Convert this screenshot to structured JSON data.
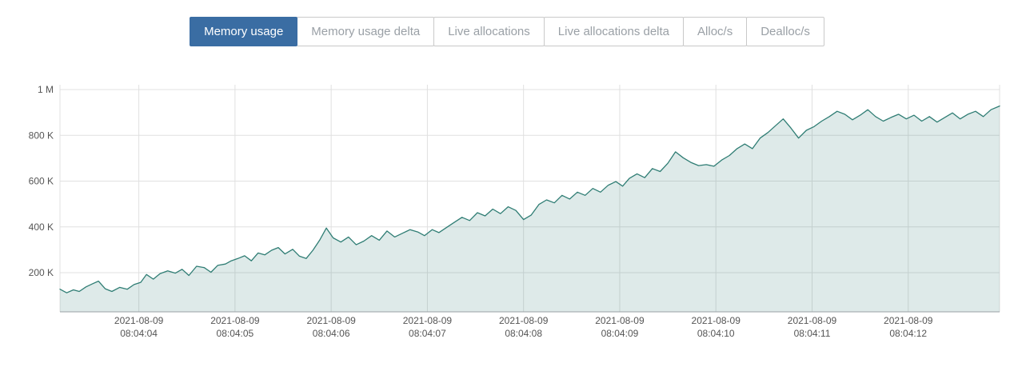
{
  "tabs": {
    "items": [
      {
        "label": "Memory usage",
        "active": true
      },
      {
        "label": "Memory usage delta",
        "active": false
      },
      {
        "label": "Live allocations",
        "active": false
      },
      {
        "label": "Live allocations delta",
        "active": false
      },
      {
        "label": "Alloc/s",
        "active": false
      },
      {
        "label": "Dealloc/s",
        "active": false
      }
    ],
    "active_color": "#3a6da3",
    "inactive_text_color": "#9aa0a6",
    "border_color": "#c9c9c9"
  },
  "chart_data": {
    "type": "area",
    "title": "Memory usage",
    "series_name": "Memory usage",
    "values_unit": "K",
    "x_domain": [
      3.18,
      12.95
    ],
    "y_domain": [
      29,
      1021
    ],
    "y_ticks": [
      {
        "label": "1 M",
        "value": 1000
      },
      {
        "label": "800 K",
        "value": 800
      },
      {
        "label": "600 K",
        "value": 600
      },
      {
        "label": "400 K",
        "value": 400
      },
      {
        "label": "200 K",
        "value": 200
      }
    ],
    "x_ticks": [
      {
        "date": "2021-08-09",
        "time": "08:04:04",
        "t": 4
      },
      {
        "date": "2021-08-09",
        "time": "08:04:05",
        "t": 5
      },
      {
        "date": "2021-08-09",
        "time": "08:04:06",
        "t": 6
      },
      {
        "date": "2021-08-09",
        "time": "08:04:07",
        "t": 7
      },
      {
        "date": "2021-08-09",
        "time": "08:04:08",
        "t": 8
      },
      {
        "date": "2021-08-09",
        "time": "08:04:09",
        "t": 9
      },
      {
        "date": "2021-08-09",
        "time": "08:04:10",
        "t": 10
      },
      {
        "date": "2021-08-09",
        "time": "08:04:11",
        "t": 11
      },
      {
        "date": "2021-08-09",
        "time": "08:04:12",
        "t": 12
      }
    ],
    "points": [
      [
        3.18,
        128
      ],
      [
        3.25,
        112
      ],
      [
        3.32,
        125
      ],
      [
        3.38,
        118
      ],
      [
        3.45,
        138
      ],
      [
        3.52,
        152
      ],
      [
        3.58,
        163
      ],
      [
        3.65,
        130
      ],
      [
        3.72,
        118
      ],
      [
        3.8,
        136
      ],
      [
        3.88,
        128
      ],
      [
        3.95,
        148
      ],
      [
        4.02,
        158
      ],
      [
        4.08,
        192
      ],
      [
        4.15,
        172
      ],
      [
        4.22,
        196
      ],
      [
        4.3,
        208
      ],
      [
        4.38,
        198
      ],
      [
        4.45,
        215
      ],
      [
        4.52,
        188
      ],
      [
        4.6,
        228
      ],
      [
        4.68,
        222
      ],
      [
        4.75,
        202
      ],
      [
        4.82,
        232
      ],
      [
        4.9,
        238
      ],
      [
        4.96,
        252
      ],
      [
        5.03,
        262
      ],
      [
        5.1,
        274
      ],
      [
        5.17,
        252
      ],
      [
        5.24,
        286
      ],
      [
        5.31,
        278
      ],
      [
        5.38,
        298
      ],
      [
        5.45,
        310
      ],
      [
        5.52,
        282
      ],
      [
        5.6,
        302
      ],
      [
        5.67,
        272
      ],
      [
        5.74,
        262
      ],
      [
        5.81,
        298
      ],
      [
        5.88,
        342
      ],
      [
        5.95,
        395
      ],
      [
        6.02,
        352
      ],
      [
        6.1,
        334
      ],
      [
        6.18,
        356
      ],
      [
        6.26,
        322
      ],
      [
        6.34,
        338
      ],
      [
        6.42,
        362
      ],
      [
        6.5,
        342
      ],
      [
        6.58,
        382
      ],
      [
        6.66,
        356
      ],
      [
        6.74,
        372
      ],
      [
        6.82,
        388
      ],
      [
        6.9,
        378
      ],
      [
        6.97,
        362
      ],
      [
        7.05,
        388
      ],
      [
        7.12,
        375
      ],
      [
        7.2,
        398
      ],
      [
        7.28,
        420
      ],
      [
        7.36,
        442
      ],
      [
        7.44,
        428
      ],
      [
        7.52,
        462
      ],
      [
        7.6,
        448
      ],
      [
        7.68,
        478
      ],
      [
        7.76,
        458
      ],
      [
        7.84,
        488
      ],
      [
        7.92,
        472
      ],
      [
        8.0,
        432
      ],
      [
        8.08,
        452
      ],
      [
        8.16,
        498
      ],
      [
        8.24,
        518
      ],
      [
        8.32,
        505
      ],
      [
        8.4,
        538
      ],
      [
        8.48,
        522
      ],
      [
        8.56,
        552
      ],
      [
        8.64,
        538
      ],
      [
        8.72,
        568
      ],
      [
        8.8,
        552
      ],
      [
        8.88,
        582
      ],
      [
        8.96,
        598
      ],
      [
        9.03,
        578
      ],
      [
        9.1,
        612
      ],
      [
        9.18,
        632
      ],
      [
        9.26,
        615
      ],
      [
        9.34,
        655
      ],
      [
        9.42,
        642
      ],
      [
        9.5,
        678
      ],
      [
        9.58,
        728
      ],
      [
        9.66,
        702
      ],
      [
        9.74,
        682
      ],
      [
        9.82,
        668
      ],
      [
        9.9,
        672
      ],
      [
        9.98,
        665
      ],
      [
        10.06,
        692
      ],
      [
        10.14,
        712
      ],
      [
        10.22,
        742
      ],
      [
        10.3,
        762
      ],
      [
        10.38,
        742
      ],
      [
        10.46,
        788
      ],
      [
        10.54,
        812
      ],
      [
        10.62,
        842
      ],
      [
        10.7,
        872
      ],
      [
        10.78,
        832
      ],
      [
        10.86,
        788
      ],
      [
        10.94,
        822
      ],
      [
        11.02,
        838
      ],
      [
        11.1,
        862
      ],
      [
        11.18,
        882
      ],
      [
        11.26,
        905
      ],
      [
        11.34,
        892
      ],
      [
        11.42,
        868
      ],
      [
        11.5,
        888
      ],
      [
        11.58,
        912
      ],
      [
        11.66,
        882
      ],
      [
        11.74,
        862
      ],
      [
        11.82,
        878
      ],
      [
        11.9,
        892
      ],
      [
        11.98,
        872
      ],
      [
        12.06,
        888
      ],
      [
        12.14,
        862
      ],
      [
        12.22,
        882
      ],
      [
        12.3,
        858
      ],
      [
        12.38,
        878
      ],
      [
        12.46,
        898
      ],
      [
        12.54,
        872
      ],
      [
        12.62,
        892
      ],
      [
        12.7,
        905
      ],
      [
        12.78,
        882
      ],
      [
        12.86,
        912
      ],
      [
        12.95,
        928
      ]
    ],
    "colors": {
      "line": "#2f7d74",
      "fill": "rgba(47,125,116,0.16)",
      "grid": "#e0e0e0",
      "axis": "#9aa0a5",
      "label": "#555555"
    },
    "legend": "none",
    "grid": true
  }
}
